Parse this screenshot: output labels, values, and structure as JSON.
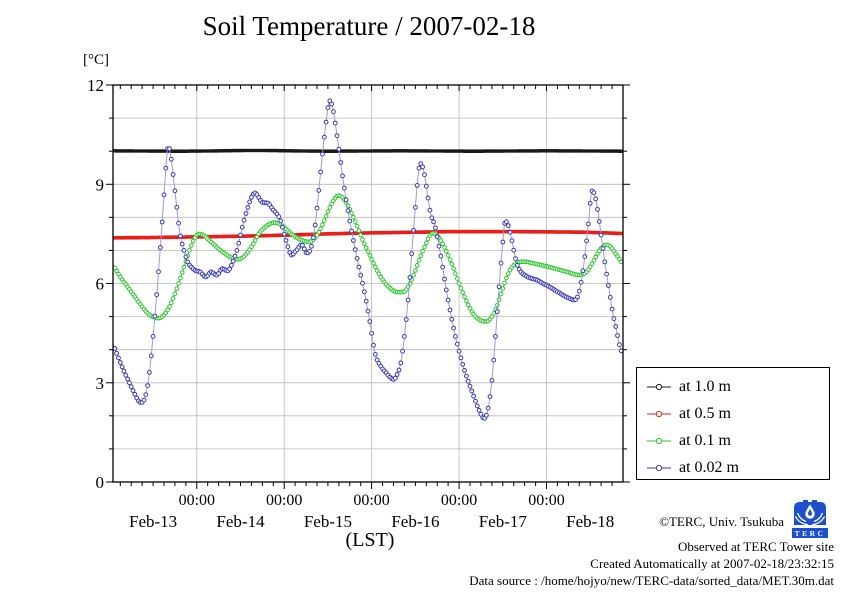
{
  "title": "Soil Temperature / 2007-02-18",
  "unit_label": "[°C]",
  "xaxis_label": "(LST)",
  "legend": {
    "items": [
      {
        "label": "at 1.0 m",
        "series_index": 0
      },
      {
        "label": "at 0.5 m",
        "series_index": 1
      },
      {
        "label": "at 0.1 m",
        "series_index": 2
      },
      {
        "label": "at 0.02 m",
        "series_index": 3
      }
    ]
  },
  "credits": {
    "line1": "©TERC, Univ. Tsukuba",
    "line2": "Observed at TERC Tower site",
    "line3": "Created Automatically at 2007-02-18/23:32:15",
    "line4": "Data source : /home/hojyo/new/TERC-data/sorted_data/MET.30m.dat",
    "logo_text": "TERC",
    "logo_color": "#1d4fd1"
  },
  "chart_data": {
    "type": "line",
    "title": "Soil Temperature / 2007-02-18",
    "xlabel": "(LST)",
    "ylabel": "[°C]",
    "x_unit": "hours since Feb-13 00:00 LST",
    "xlim": [
      1,
      141
    ],
    "ylim": [
      0,
      12
    ],
    "grid": true,
    "y_major_ticks": [
      0,
      3,
      6,
      9,
      12
    ],
    "y_minor_step": 1,
    "x_minor_step_hours": 3,
    "marker_interval_hours": 0.5,
    "x_major_ticks": [
      {
        "t": 24,
        "label": "00:00"
      },
      {
        "t": 48,
        "label": "00:00"
      },
      {
        "t": 72,
        "label": "00:00"
      },
      {
        "t": 96,
        "label": "00:00"
      },
      {
        "t": 120,
        "label": "00:00"
      }
    ],
    "x_day_labels": [
      {
        "t": 12,
        "label": "Feb-13"
      },
      {
        "t": 36,
        "label": "Feb-14"
      },
      {
        "t": 60,
        "label": "Feb-15"
      },
      {
        "t": 84,
        "label": "Feb-16"
      },
      {
        "t": 108,
        "label": "Feb-17"
      },
      {
        "t": 132,
        "label": "Feb-18"
      }
    ],
    "legend_position": "outside-right",
    "series": [
      {
        "name": "at 1.0 m",
        "depth_m": 1.0,
        "color": "#1a1a1a",
        "line_color": "#1a1a1a",
        "line_width": 2.4,
        "marker_radius": 1.3,
        "marker_fill": "#1a1a1a",
        "points": [
          [
            1.1,
            10.01
          ],
          [
            20,
            10
          ],
          [
            40,
            10.02
          ],
          [
            60,
            10
          ],
          [
            80,
            10.01
          ],
          [
            100,
            10
          ],
          [
            120,
            10.01
          ],
          [
            140.7,
            10
          ]
        ]
      },
      {
        "name": "at 0.5 m",
        "depth_m": 0.5,
        "color": "#e62119",
        "line_color": "#e62119",
        "line_width": 2.6,
        "marker_radius": 1.4,
        "marker_fill": "#e62119",
        "points": [
          [
            1.1,
            7.38
          ],
          [
            12,
            7.39
          ],
          [
            24,
            7.41
          ],
          [
            36,
            7.43
          ],
          [
            48,
            7.46
          ],
          [
            60,
            7.5
          ],
          [
            72,
            7.53
          ],
          [
            84,
            7.55
          ],
          [
            96,
            7.57
          ],
          [
            108,
            7.57
          ],
          [
            120,
            7.56
          ],
          [
            130,
            7.55
          ],
          [
            136,
            7.53
          ],
          [
            140.7,
            7.51
          ]
        ]
      },
      {
        "name": "at 0.1 m",
        "depth_m": 0.1,
        "color": "#2cc82c",
        "line_color": "#2cc82c",
        "line_width": 1.1,
        "marker_radius": 1.8,
        "marker_fill": "#ffffff",
        "points": [
          [
            1.1,
            6.55
          ],
          [
            3,
            6.2
          ],
          [
            5,
            5.9
          ],
          [
            7,
            5.6
          ],
          [
            9,
            5.3
          ],
          [
            11,
            5.05
          ],
          [
            12.5,
            4.97
          ],
          [
            13.4,
            4.95
          ],
          [
            14.5,
            5
          ],
          [
            16,
            5.2
          ],
          [
            17.5,
            5.55
          ],
          [
            19,
            6
          ],
          [
            20.5,
            6.5
          ],
          [
            22,
            7
          ],
          [
            23.3,
            7.35
          ],
          [
            24.5,
            7.5
          ],
          [
            26,
            7.45
          ],
          [
            27.5,
            7.3
          ],
          [
            29,
            7.15
          ],
          [
            30.5,
            7
          ],
          [
            32,
            6.88
          ],
          [
            33.5,
            6.78
          ],
          [
            35,
            6.73
          ],
          [
            36.5,
            6.78
          ],
          [
            38,
            6.95
          ],
          [
            39.5,
            7.2
          ],
          [
            41,
            7.5
          ],
          [
            42.5,
            7.68
          ],
          [
            44,
            7.8
          ],
          [
            45.5,
            7.84
          ],
          [
            47,
            7.78
          ],
          [
            48.5,
            7.65
          ],
          [
            50,
            7.5
          ],
          [
            51.5,
            7.38
          ],
          [
            53,
            7.3
          ],
          [
            54.5,
            7.26
          ],
          [
            56,
            7.32
          ],
          [
            57.5,
            7.55
          ],
          [
            59,
            7.9
          ],
          [
            60.5,
            8.3
          ],
          [
            61.8,
            8.55
          ],
          [
            62.8,
            8.66
          ],
          [
            64,
            8.6
          ],
          [
            65.5,
            8.35
          ],
          [
            67,
            8
          ],
          [
            68.5,
            7.6
          ],
          [
            70,
            7.2
          ],
          [
            71.5,
            6.85
          ],
          [
            73,
            6.5
          ],
          [
            74.5,
            6.2
          ],
          [
            76,
            5.97
          ],
          [
            77.5,
            5.82
          ],
          [
            79,
            5.74
          ],
          [
            80.5,
            5.74
          ],
          [
            82,
            5.9
          ],
          [
            83.5,
            6.25
          ],
          [
            85,
            6.7
          ],
          [
            86.5,
            7.1
          ],
          [
            88,
            7.45
          ],
          [
            88.8,
            7.52
          ],
          [
            90,
            7.45
          ],
          [
            91.5,
            7.2
          ],
          [
            93,
            6.85
          ],
          [
            94.5,
            6.45
          ],
          [
            96,
            6
          ],
          [
            97.5,
            5.6
          ],
          [
            99,
            5.25
          ],
          [
            100.5,
            5
          ],
          [
            102,
            4.88
          ],
          [
            103.5,
            4.85
          ],
          [
            105,
            5
          ],
          [
            106.5,
            5.35
          ],
          [
            108,
            5.85
          ],
          [
            109.5,
            6.3
          ],
          [
            111,
            6.55
          ],
          [
            112.5,
            6.65
          ],
          [
            114,
            6.66
          ],
          [
            116,
            6.62
          ],
          [
            118,
            6.57
          ],
          [
            120,
            6.52
          ],
          [
            122,
            6.46
          ],
          [
            124,
            6.4
          ],
          [
            126,
            6.34
          ],
          [
            128,
            6.27
          ],
          [
            129.5,
            6.26
          ],
          [
            131,
            6.35
          ],
          [
            132.5,
            6.6
          ],
          [
            134,
            6.9
          ],
          [
            135.5,
            7.12
          ],
          [
            136.5,
            7.17
          ],
          [
            137.5,
            7.12
          ],
          [
            139,
            6.9
          ],
          [
            140.7,
            6.62
          ]
        ]
      },
      {
        "name": "at 0.02 m",
        "depth_m": 0.02,
        "color": "#3737c2",
        "line_color": "#9a9ae0",
        "line_width": 1,
        "marker_radius": 1.9,
        "marker_fill": "#ffffff",
        "points": [
          [
            1.1,
            4.15
          ],
          [
            2.5,
            3.75
          ],
          [
            4,
            3.35
          ],
          [
            5.5,
            3
          ],
          [
            7,
            2.65
          ],
          [
            8,
            2.45
          ],
          [
            8.8,
            2.4
          ],
          [
            9.6,
            2.5
          ],
          [
            10.4,
            2.85
          ],
          [
            11.2,
            3.5
          ],
          [
            12,
            4.4
          ],
          [
            12.8,
            5.4
          ],
          [
            13.6,
            6.5
          ],
          [
            14.4,
            7.7
          ],
          [
            15.2,
            9
          ],
          [
            15.8,
            9.9
          ],
          [
            16.2,
            10.15
          ],
          [
            16.8,
            9.9
          ],
          [
            17.6,
            9.2
          ],
          [
            18.4,
            8.4
          ],
          [
            19.4,
            7.5
          ],
          [
            20.5,
            7
          ],
          [
            21.5,
            6.65
          ],
          [
            22.5,
            6.5
          ],
          [
            23.5,
            6.4
          ],
          [
            24.9,
            6.35
          ],
          [
            26.5,
            6.2
          ],
          [
            28,
            6.35
          ],
          [
            29.5,
            6.25
          ],
          [
            31,
            6.45
          ],
          [
            32.5,
            6.38
          ],
          [
            33.5,
            6.55
          ],
          [
            35,
            7
          ],
          [
            36.5,
            7.7
          ],
          [
            38,
            8.3
          ],
          [
            39.2,
            8.65
          ],
          [
            40,
            8.74
          ],
          [
            41,
            8.6
          ],
          [
            42,
            8.45
          ],
          [
            43.5,
            8.43
          ],
          [
            44.8,
            8.25
          ],
          [
            46.8,
            7.95
          ],
          [
            48.5,
            7.3
          ],
          [
            50,
            6.86
          ],
          [
            51.3,
            7
          ],
          [
            52.8,
            7.17
          ],
          [
            54.2,
            6.92
          ],
          [
            55.3,
            7.05
          ],
          [
            56.3,
            7.6
          ],
          [
            57.3,
            8.6
          ],
          [
            58.3,
            9.7
          ],
          [
            59.3,
            10.7
          ],
          [
            60.5,
            11.52
          ],
          [
            61.3,
            11.3
          ],
          [
            62.2,
            10.7
          ],
          [
            63.2,
            9.9
          ],
          [
            64.2,
            9.1
          ],
          [
            65.5,
            8.2
          ],
          [
            67,
            7.3
          ],
          [
            68.5,
            6.5
          ],
          [
            70,
            5.75
          ],
          [
            71.5,
            4.85
          ],
          [
            72.9,
            3.9
          ],
          [
            74.5,
            3.5
          ],
          [
            76,
            3.3
          ],
          [
            77.2,
            3.15
          ],
          [
            78.1,
            3.1
          ],
          [
            79,
            3.25
          ],
          [
            80,
            3.6
          ],
          [
            81,
            4.4
          ],
          [
            82,
            5.5
          ],
          [
            83,
            6.9
          ],
          [
            84,
            8.3
          ],
          [
            84.8,
            9.3
          ],
          [
            85.3,
            9.63
          ],
          [
            86.2,
            9.45
          ],
          [
            87.2,
            8.8
          ],
          [
            88.2,
            8.1
          ],
          [
            89.3,
            7.77
          ],
          [
            90.2,
            7.3
          ],
          [
            91.2,
            6.7
          ],
          [
            92.2,
            6
          ],
          [
            93.5,
            5.2
          ],
          [
            95,
            4.4
          ],
          [
            96.5,
            3.75
          ],
          [
            98,
            3.2
          ],
          [
            99.5,
            2.75
          ],
          [
            101,
            2.3
          ],
          [
            102,
            2.05
          ],
          [
            102.8,
            1.92
          ],
          [
            103.6,
            2.05
          ],
          [
            104.4,
            2.5
          ],
          [
            105.2,
            3.3
          ],
          [
            106,
            4.4
          ],
          [
            107,
            5.9
          ],
          [
            107.8,
            7
          ],
          [
            108.7,
            7.89
          ],
          [
            109.5,
            7.75
          ],
          [
            110.3,
            7.4
          ],
          [
            111.2,
            6.9
          ],
          [
            112,
            6.55
          ],
          [
            113,
            6.35
          ],
          [
            114.5,
            6.22
          ],
          [
            116,
            6.15
          ],
          [
            117.5,
            6.1
          ],
          [
            119,
            6
          ],
          [
            120.5,
            5.92
          ],
          [
            122,
            5.82
          ],
          [
            123.5,
            5.72
          ],
          [
            125,
            5.62
          ],
          [
            126.5,
            5.54
          ],
          [
            127.6,
            5.5
          ],
          [
            128.6,
            5.62
          ],
          [
            129.6,
            6.1
          ],
          [
            130.6,
            6.9
          ],
          [
            131.5,
            7.8
          ],
          [
            132.5,
            8.8
          ],
          [
            133.3,
            8.65
          ],
          [
            134.2,
            8.1
          ],
          [
            135.2,
            7.3
          ],
          [
            136.2,
            6.5
          ],
          [
            137.2,
            5.8
          ],
          [
            138.2,
            5.1
          ],
          [
            139.2,
            4.6
          ],
          [
            140,
            4.15
          ],
          [
            140.7,
            3.9
          ]
        ]
      }
    ]
  }
}
